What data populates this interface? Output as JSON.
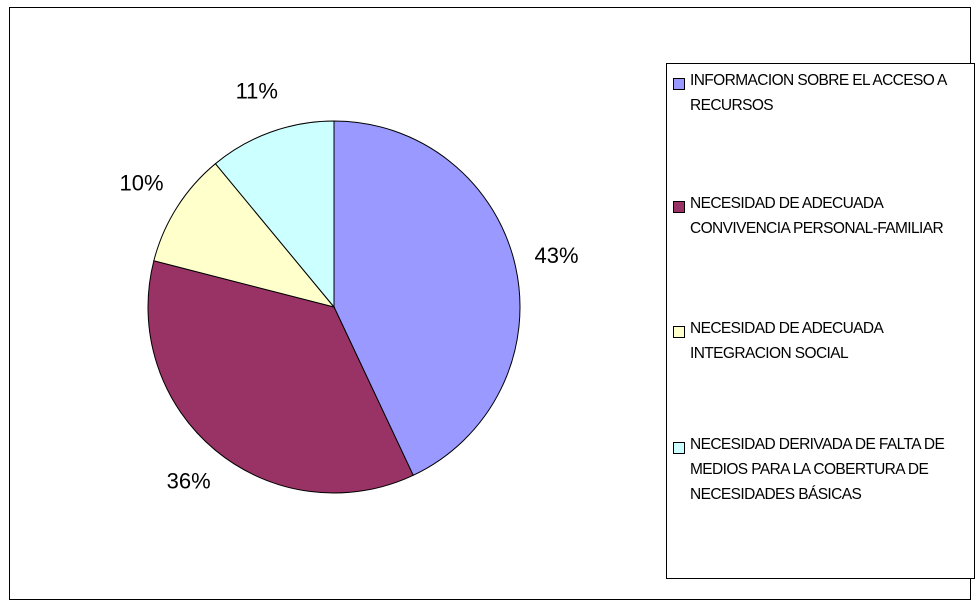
{
  "chart_data": {
    "type": "pie",
    "categories": [
      "INFORMACION SOBRE EL ACCESO A RECURSOS",
      "NECESIDAD DE ADECUADA CONVIVENCIA PERSONAL-FAMILIAR",
      "NECESIDAD DE ADECUADA INTEGRACION SOCIAL",
      "NECESIDAD DERIVADA DE FALTA DE MEDIOS PARA LA COBERTURA DE NECESIDADES BÁSICAS"
    ],
    "values": [
      43,
      36,
      10,
      11
    ],
    "value_labels": [
      "43%",
      "36%",
      "10%",
      "11%"
    ],
    "colors": [
      "#9999ff",
      "#993366",
      "#ffffcc",
      "#ccffff"
    ],
    "legend": "right"
  }
}
